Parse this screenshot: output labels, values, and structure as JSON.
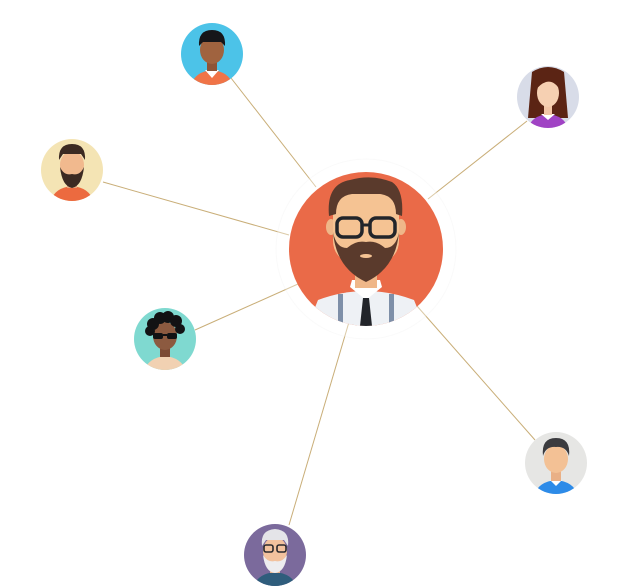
{
  "diagram": {
    "hub": {
      "id": "hub",
      "avatar": "bearded-man-glasses-avatar",
      "bg": "#EA6A48"
    },
    "nodes": [
      {
        "id": "top",
        "avatar": "man-short-hair-avatar",
        "bg": "#4CC3E8"
      },
      {
        "id": "top-right",
        "avatar": "woman-long-hair-avatar",
        "bg": "#D8DCE8"
      },
      {
        "id": "left",
        "avatar": "bearded-man-avatar",
        "bg": "#F4E4B4"
      },
      {
        "id": "mid-left",
        "avatar": "curly-hair-sunglasses-avatar",
        "bg": "#7FD9D0"
      },
      {
        "id": "bottom",
        "avatar": "grey-haired-man-glasses-avatar",
        "bg": "#7B6A9C"
      },
      {
        "id": "right",
        "avatar": "man-dark-hair-avatar",
        "bg": "#E6E6E4"
      }
    ],
    "edges": [
      {
        "from": "hub",
        "to": "top"
      },
      {
        "from": "hub",
        "to": "top-right"
      },
      {
        "from": "hub",
        "to": "left"
      },
      {
        "from": "hub",
        "to": "mid-left"
      },
      {
        "from": "hub",
        "to": "bottom"
      },
      {
        "from": "hub",
        "to": "right"
      }
    ],
    "line_color": "#C9AE78"
  }
}
